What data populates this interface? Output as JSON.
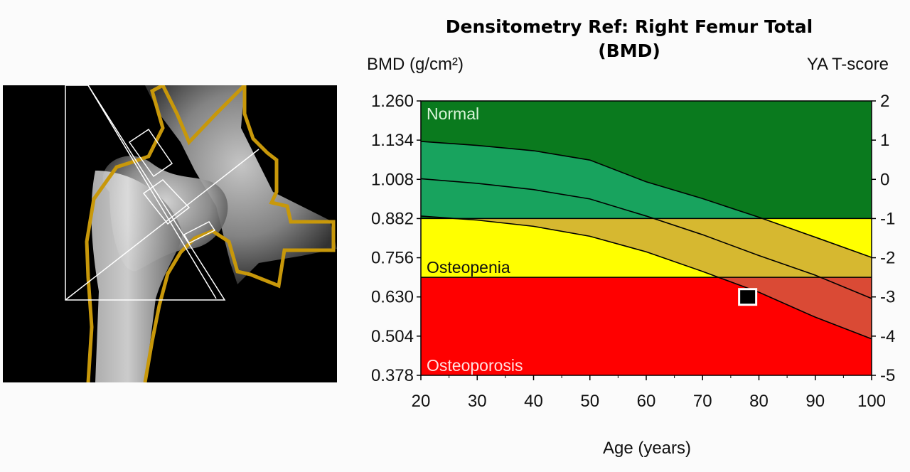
{
  "chart_data": {
    "type": "line",
    "title_line1": "Densitometry Ref: Right Femur Total",
    "title_line2": "(BMD)",
    "ylabel": "BMD (g/cm²)",
    "y2label": "YA T-score",
    "xlabel": "Age (years)",
    "xlim": [
      20,
      100
    ],
    "ylim": [
      0.378,
      1.26
    ],
    "x_ticks": [
      "20",
      "30",
      "40",
      "50",
      "60",
      "70",
      "80",
      "90",
      "100"
    ],
    "y_ticks": [
      "1.260",
      "1.134",
      "1.008",
      "0.882",
      "0.756",
      "0.630",
      "0.504",
      "0.378"
    ],
    "y2_ticks": [
      "2",
      "1",
      "0",
      "-1",
      "-2",
      "-3",
      "-4",
      "-5"
    ],
    "zones": [
      {
        "label": "Normal",
        "from": 0.882,
        "to": 1.26,
        "color": "#0a7a1e",
        "band_color": "#18a35e",
        "label_color": "#d9f5d9"
      },
      {
        "label": "Osteopenia",
        "from": 0.693,
        "to": 0.882,
        "color": "#ffff00",
        "band_color": "#d6b830",
        "label_color": "#111111"
      },
      {
        "label": "Osteoporosis",
        "from": 0.378,
        "to": 0.693,
        "color": "#ff0000",
        "band_color": "#da4a35",
        "label_color": "#ffe0e0"
      }
    ],
    "series": [
      {
        "x": [
          20,
          30,
          40,
          50,
          60,
          70,
          80,
          90,
          100
        ],
        "values": [
          1.13,
          1.117,
          1.1,
          1.07,
          1.0,
          0.946,
          0.886,
          0.822,
          0.757
        ]
      },
      {
        "x": [
          20,
          30,
          40,
          50,
          60,
          70,
          80,
          90,
          100
        ],
        "values": [
          1.01,
          0.995,
          0.975,
          0.945,
          0.89,
          0.83,
          0.763,
          0.7,
          0.625
        ]
      },
      {
        "x": [
          20,
          30,
          40,
          50,
          60,
          70,
          80,
          90,
          100
        ],
        "values": [
          0.89,
          0.877,
          0.857,
          0.825,
          0.775,
          0.712,
          0.645,
          0.565,
          0.495
        ]
      }
    ],
    "patient_point": {
      "x": 78,
      "y": 0.63
    },
    "colors": {
      "frame": "#000000",
      "point_fill": "#000000",
      "point_border": "#ffffff"
    }
  },
  "scan": {
    "background": "#000000",
    "outline_color": "#c8980a"
  }
}
